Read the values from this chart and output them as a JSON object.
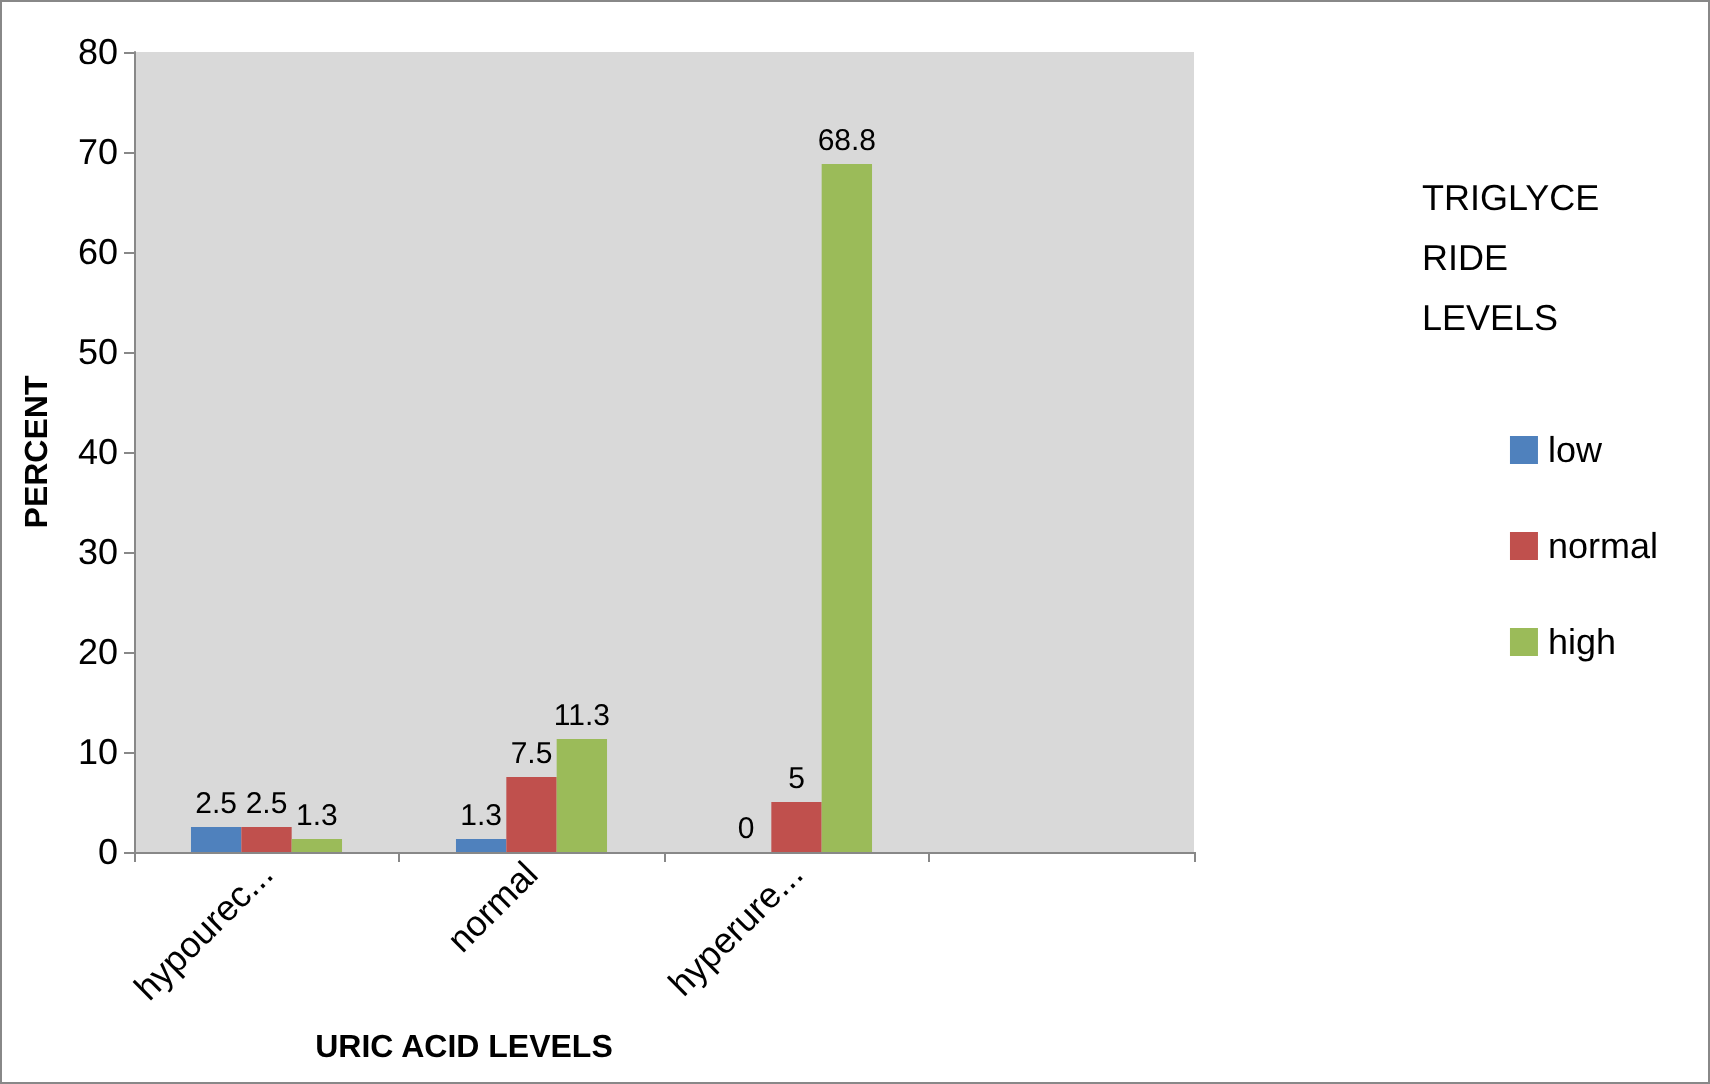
{
  "chart_data": {
    "type": "bar",
    "xlabel": "URIC ACID LEVELS",
    "ylabel": "PERCENT",
    "legend_title": "TRIGLYCE RIDE LEVELS",
    "categories": [
      "hypourec...",
      "normal",
      "hyperure...",
      null
    ],
    "series": [
      {
        "name": "low",
        "color": "#4f81bd",
        "values": [
          2.5,
          1.3,
          0,
          null
        ]
      },
      {
        "name": "normal",
        "color": "#c0504d",
        "values": [
          2.5,
          7.5,
          5,
          null
        ]
      },
      {
        "name": "high",
        "color": "#9bbb59",
        "values": [
          1.3,
          11.3,
          68.8,
          null
        ]
      }
    ],
    "ylim": [
      0,
      80
    ],
    "yticks": [
      0,
      10,
      20,
      30,
      40,
      50,
      60,
      70,
      80
    ],
    "grid": false,
    "legend": "right",
    "data_labels": true
  }
}
